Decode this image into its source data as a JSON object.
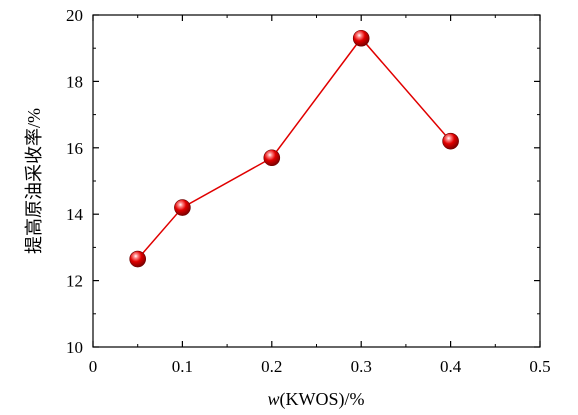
{
  "chart_data": {
    "type": "line",
    "xlabel_italic": "w",
    "xlabel_rest": "(KWOS)/%",
    "ylabel": "提高原油采收率/%",
    "xlim": [
      0,
      0.5
    ],
    "ylim": [
      10,
      20
    ],
    "xticks": [
      0,
      0.1,
      0.2,
      0.3,
      0.4,
      0.5
    ],
    "xtick_labels": [
      "0",
      "0.1",
      "0.2",
      "0.3",
      "0.4",
      "0.5"
    ],
    "yticks": [
      10,
      12,
      14,
      16,
      18,
      20
    ],
    "ytick_labels": [
      "10",
      "12",
      "14",
      "16",
      "18",
      "20"
    ],
    "grid": false,
    "series": [
      {
        "x": [
          0.05,
          0.1,
          0.2,
          0.3,
          0.4
        ],
        "y": [
          12.65,
          14.2,
          15.7,
          19.3,
          16.2
        ],
        "color": "#e00000",
        "marker": "sphere"
      }
    ]
  }
}
